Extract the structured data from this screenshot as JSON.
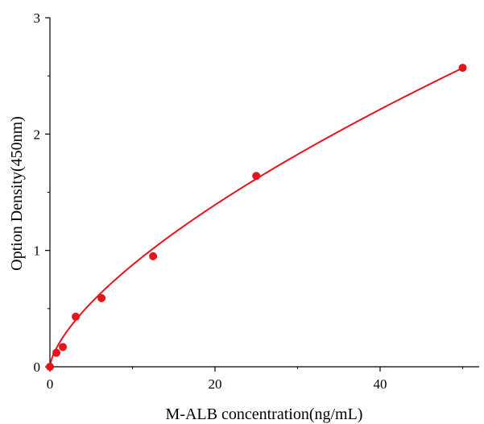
{
  "chart_data": {
    "type": "scatter",
    "title": "",
    "xlabel": "M-ALB concentration(ng/mL)",
    "ylabel": "Option Density(450nm)",
    "xlim": [
      0,
      52
    ],
    "ylim": [
      0,
      3
    ],
    "x_ticks": [
      0,
      20,
      40
    ],
    "y_ticks": [
      0,
      1,
      2,
      3
    ],
    "grid": false,
    "legend": "none",
    "series": [
      {
        "marker_color": "#e8121b",
        "line_color": "#e8121b",
        "fit": "power curve",
        "x": [
          0,
          0.78,
          1.56,
          3.13,
          6.25,
          12.5,
          25,
          50
        ],
        "y": [
          0.0,
          0.12,
          0.17,
          0.43,
          0.59,
          0.95,
          1.64,
          2.57
        ]
      }
    ],
    "curve": {
      "a": 0.1875,
      "b": 0.669,
      "offset": 0.0
    }
  }
}
